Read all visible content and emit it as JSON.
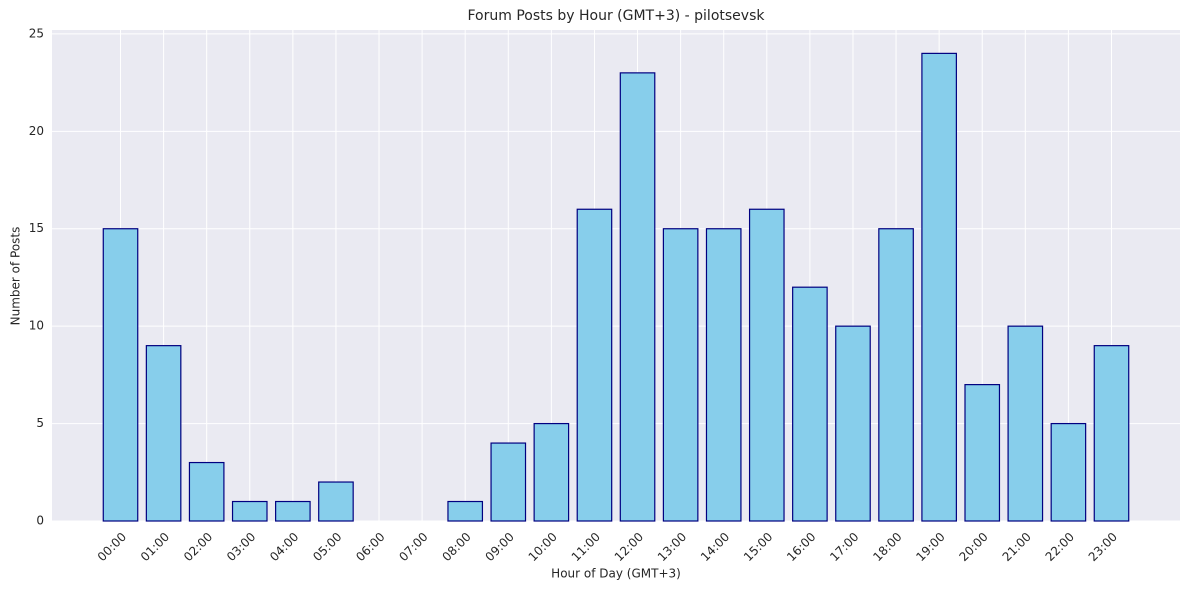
{
  "chart_data": {
    "type": "bar",
    "title": "Forum Posts by Hour (GMT+3) - pilotsevsk",
    "x_label": "Hour of Day (GMT+3)",
    "y_label": "Number of Posts",
    "categories": [
      "00:00",
      "01:00",
      "02:00",
      "03:00",
      "04:00",
      "05:00",
      "06:00",
      "07:00",
      "08:00",
      "09:00",
      "10:00",
      "11:00",
      "12:00",
      "13:00",
      "14:00",
      "15:00",
      "16:00",
      "17:00",
      "18:00",
      "19:00",
      "20:00",
      "21:00",
      "22:00",
      "23:00"
    ],
    "values": [
      15,
      9,
      3,
      1,
      1,
      2,
      0,
      0,
      1,
      4,
      5,
      16,
      23,
      15,
      15,
      16,
      12,
      10,
      15,
      24,
      7,
      10,
      5,
      9
    ],
    "color": "#87ceeb",
    "edge_color": "#000080",
    "ylim": [
      0,
      25.2
    ],
    "yticks": [
      0,
      5,
      10,
      15,
      20,
      25
    ],
    "grid": true
  }
}
